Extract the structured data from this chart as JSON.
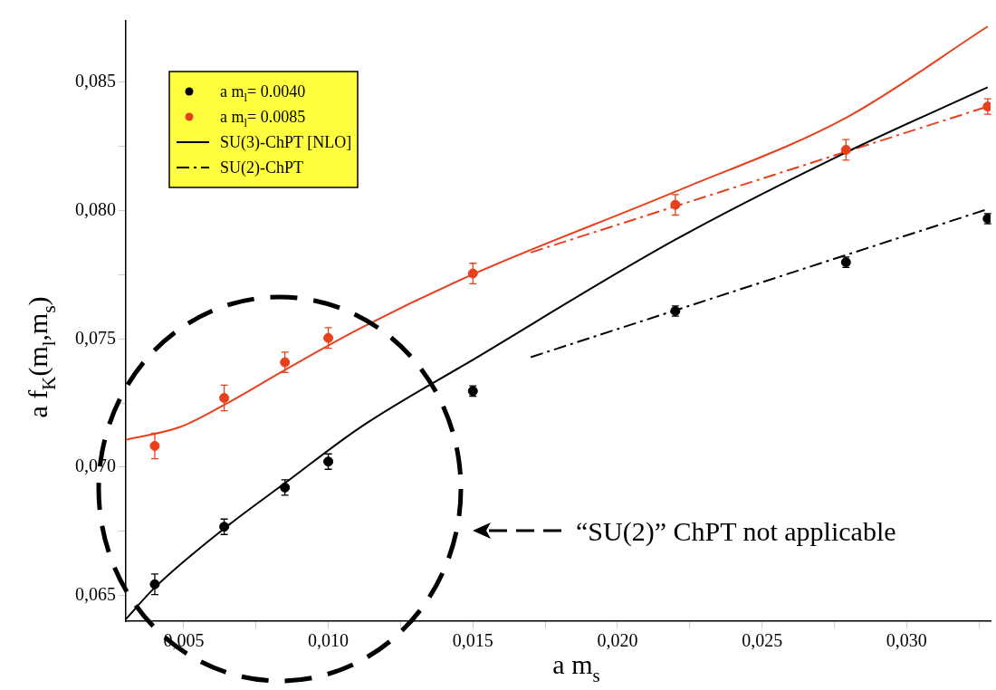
{
  "chart_data": {
    "type": "scatter",
    "xlabel": "a m$_{s}$",
    "ylabel": "a f$_{K}$(m$_{l}$,m$_{s}$)",
    "xlim": [
      0.003,
      0.0329
    ],
    "ylim": [
      0.064,
      0.0874
    ],
    "xticks": [
      {
        "value": 0.005,
        "label": "0,005"
      },
      {
        "value": 0.0075,
        "label": null
      },
      {
        "value": 0.01,
        "label": "0,010"
      },
      {
        "value": 0.0125,
        "label": null
      },
      {
        "value": 0.015,
        "label": "0,015"
      },
      {
        "value": 0.0175,
        "label": null
      },
      {
        "value": 0.02,
        "label": "0,020"
      },
      {
        "value": 0.0225,
        "label": null
      },
      {
        "value": 0.025,
        "label": "0,025"
      },
      {
        "value": 0.0275,
        "label": null
      },
      {
        "value": 0.03,
        "label": "0,030"
      },
      {
        "value": 0.0325,
        "label": null
      }
    ],
    "yticks": [
      {
        "value": 0.065,
        "label": "0,065"
      },
      {
        "value": 0.0675,
        "label": null
      },
      {
        "value": 0.07,
        "label": "0,070"
      },
      {
        "value": 0.0725,
        "label": null
      },
      {
        "value": 0.075,
        "label": "0,075"
      },
      {
        "value": 0.0775,
        "label": null
      },
      {
        "value": 0.08,
        "label": "0,080"
      },
      {
        "value": 0.0825,
        "label": null
      },
      {
        "value": 0.085,
        "label": "0,085"
      }
    ],
    "grid": false,
    "legend": "top left",
    "annotations": [
      "“SU(2)” ChPT not applicable"
    ],
    "series": [
      {
        "name": "a m$_{l}$= 0.0040",
        "marker": "circle",
        "color": "#000000",
        "x": [
          0.004,
          0.0064,
          0.0085,
          0.01,
          0.015,
          0.022,
          0.0279,
          0.0328
        ],
        "values": [
          0.06544,
          0.06768,
          0.06921,
          0.07022,
          0.07297,
          0.07609,
          0.07799,
          0.07969
        ],
        "errors": [
          0.0004,
          0.0003,
          0.0003,
          0.0003,
          0.0002,
          0.0002,
          0.0002,
          0.0002
        ]
      },
      {
        "name": "a m$_{l}$= 0.0085",
        "marker": "circle",
        "color": "#e8401c",
        "x": [
          0.004,
          0.0064,
          0.0085,
          0.01,
          0.015,
          0.022,
          0.0279,
          0.0328
        ],
        "values": [
          0.07083,
          0.0727,
          0.07409,
          0.07504,
          0.07755,
          0.08023,
          0.08237,
          0.08406
        ],
        "errors": [
          0.0005,
          0.0005,
          0.0004,
          0.0004,
          0.0004,
          0.0004,
          0.0004,
          0.0003
        ]
      },
      {
        "name": "SU(3)-ChPT [NLO]",
        "type": "line",
        "color": "#000000",
        "line_style": "solid",
        "x": [
          0.003,
          0.004,
          0.0064,
          0.0085,
          0.0111,
          0.015,
          0.022,
          0.0279,
          0.0328
        ],
        "values": [
          0.06408,
          0.06531,
          0.06761,
          0.06938,
          0.07155,
          0.07419,
          0.07887,
          0.08227,
          0.08481
        ]
      },
      {
        "type": "line",
        "color": "#e8401c",
        "line_style": "solid",
        "x": [
          0.003,
          0.0049,
          0.0064,
          0.0085,
          0.0111,
          0.015,
          0.022,
          0.0279,
          0.0328
        ],
        "values": [
          0.07107,
          0.07158,
          0.07243,
          0.07379,
          0.07541,
          0.07752,
          0.08074,
          0.08362,
          0.08718
        ]
      },
      {
        "name": "SU(2)-ChPT",
        "type": "line",
        "color": "#000000",
        "line_style": "dashed",
        "x": [
          0.017,
          0.0328
        ],
        "values": [
          0.07429,
          0.08006
        ]
      },
      {
        "type": "line",
        "color": "#e8401c",
        "line_style": "dashed",
        "x": [
          0.017,
          0.0328
        ],
        "values": [
          0.07837,
          0.08406
        ]
      }
    ]
  }
}
